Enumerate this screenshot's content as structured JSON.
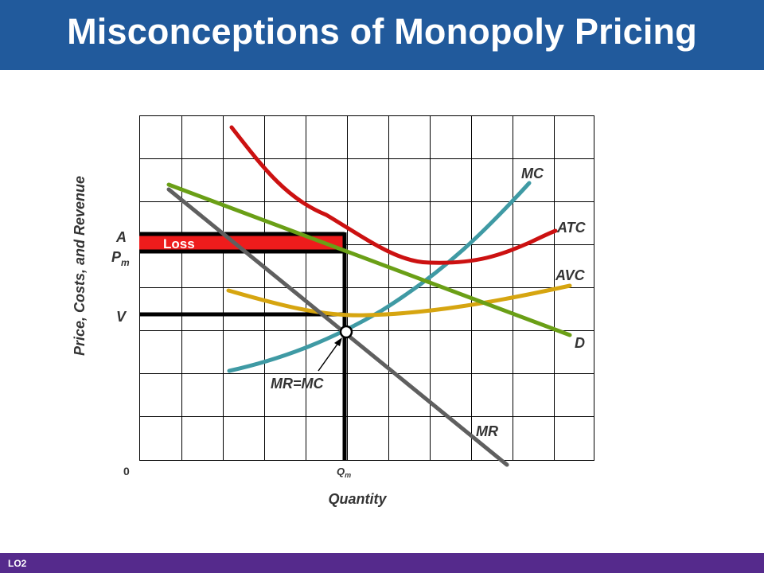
{
  "slide": {
    "title": "Misconceptions of Monopoly Pricing",
    "footer_tag": "LO2",
    "colors": {
      "header": "#215a9c",
      "footer": "#552a8c",
      "loss_fill": "#ee1c1c",
      "curve_mc": "#3f9aa4",
      "curve_atc": "#cc1111",
      "curve_avc": "#d6a510",
      "curve_demand": "#6a9f16",
      "curve_mr": "#5f5f5f"
    }
  },
  "graph": {
    "y_axis_label": "Price, Costs, and Revenue",
    "x_axis_label": "Quantity",
    "origin_label": "0",
    "price_labels": {
      "a": "A",
      "pm_main": "P",
      "pm_sub": "m",
      "v": "V"
    },
    "quantity_label": {
      "main": "Q",
      "sub": "m"
    },
    "loss_label": "Loss",
    "curve_labels": {
      "mc": "MC",
      "atc": "ATC",
      "avc": "AVC",
      "demand": "D",
      "mr": "MR"
    },
    "intersection_label": "MR=MC"
  }
}
